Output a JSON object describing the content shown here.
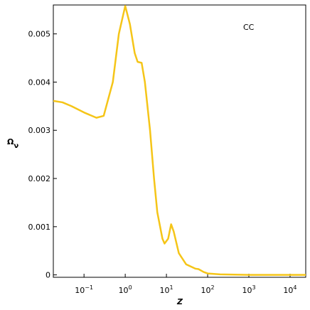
{
  "chart_data": {
    "type": "line",
    "x_label": "Z",
    "y_label": "Ων",
    "annotation": "CC",
    "log_x": true,
    "xlim": [
      0.018,
      24000
    ],
    "ylim": [
      -5e-05,
      0.0056
    ],
    "xticks": [
      {
        "value": 0.1,
        "label": "10−1"
      },
      {
        "value": 1,
        "label": "100"
      },
      {
        "value": 10,
        "label": "101"
      },
      {
        "value": 100,
        "label": "102"
      },
      {
        "value": 1000,
        "label": "103"
      },
      {
        "value": 10000,
        "label": "104"
      }
    ],
    "yticks": [
      0,
      0.001,
      0.002,
      0.003,
      0.004,
      0.005
    ],
    "x": [
      0.018,
      0.03,
      0.05,
      0.1,
      0.2,
      0.3,
      0.5,
      0.7,
      1.0,
      1.3,
      1.7,
      2.0,
      2.5,
      3.0,
      4,
      5,
      6,
      8,
      9,
      11,
      13,
      15,
      20,
      30,
      50,
      60,
      80,
      100,
      200,
      1000,
      24000
    ],
    "series": [
      {
        "name": "CC",
        "color": "#f5c518",
        "values": [
          0.00361,
          0.00358,
          0.0035,
          0.00337,
          0.00326,
          0.0033,
          0.004,
          0.005,
          0.00558,
          0.0052,
          0.0046,
          0.00442,
          0.0044,
          0.004,
          0.003,
          0.002,
          0.0013,
          0.00075,
          0.00065,
          0.00075,
          0.00105,
          0.0009,
          0.00045,
          0.00022,
          0.00013,
          0.00012,
          6e-05,
          3e-05,
          1e-05,
          0,
          0
        ]
      }
    ]
  }
}
